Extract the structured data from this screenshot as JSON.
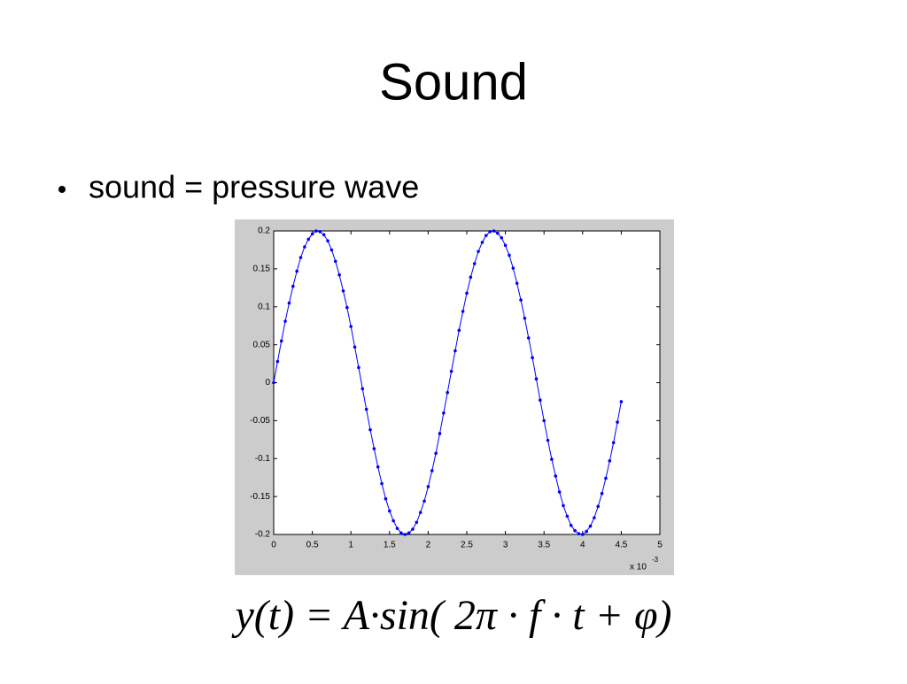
{
  "slide": {
    "title": "Sound",
    "bullet": "sound = pressure wave",
    "formula": "y(t) = A·sin( 2π · f · t + φ)"
  },
  "chart_data": {
    "type": "line",
    "x_multiplier": {
      "base": "x 10",
      "exponent": "-3"
    },
    "x": [
      0,
      0.05,
      0.1,
      0.15,
      0.2,
      0.25,
      0.3,
      0.35,
      0.4,
      0.45,
      0.5,
      0.55,
      0.6,
      0.65,
      0.7,
      0.75,
      0.8,
      0.85,
      0.9,
      0.95,
      1,
      1.05,
      1.1,
      1.15,
      1.2,
      1.25,
      1.3,
      1.35,
      1.4,
      1.45,
      1.5,
      1.55,
      1.6,
      1.65,
      1.7,
      1.75,
      1.8,
      1.85,
      1.9,
      1.95,
      2,
      2.05,
      2.1,
      2.15,
      2.2,
      2.25,
      2.3,
      2.35,
      2.4,
      2.45,
      2.5,
      2.55,
      2.6,
      2.65,
      2.7,
      2.75,
      2.8,
      2.85,
      2.9,
      2.95,
      3,
      3.05,
      3.1,
      3.15,
      3.2,
      3.25,
      3.3,
      3.35,
      3.4,
      3.45,
      3.5,
      3.55,
      3.6,
      3.65,
      3.7,
      3.75,
      3.8,
      3.85,
      3.9,
      3.95,
      4,
      4.05,
      4.1,
      4.15,
      4.2,
      4.25,
      4.3,
      4.35,
      4.4,
      4.45,
      4.5
    ],
    "series": [
      {
        "color": "#0000ff",
        "values": [
          0,
          0.028,
          0.055,
          0.081,
          0.105,
          0.127,
          0.147,
          0.165,
          0.179,
          0.189,
          0.196,
          0.2,
          0.199,
          0.195,
          0.187,
          0.175,
          0.16,
          0.142,
          0.121,
          0.099,
          0.074,
          0.047,
          0.02,
          -0.008,
          -0.035,
          -0.062,
          -0.087,
          -0.111,
          -0.133,
          -0.153,
          -0.169,
          -0.182,
          -0.192,
          -0.198,
          -0.2,
          -0.198,
          -0.193,
          -0.184,
          -0.171,
          -0.156,
          -0.137,
          -0.116,
          -0.093,
          -0.067,
          -0.04,
          -0.013,
          0.015,
          0.042,
          0.069,
          0.094,
          0.118,
          0.139,
          0.157,
          0.173,
          0.185,
          0.194,
          0.199,
          0.2,
          0.197,
          0.191,
          0.181,
          0.168,
          0.151,
          0.131,
          0.109,
          0.085,
          0.059,
          0.033,
          0.005,
          -0.023,
          -0.05,
          -0.076,
          -0.101,
          -0.123,
          -0.144,
          -0.162,
          -0.176,
          -0.188,
          -0.195,
          -0.199,
          -0.2,
          -0.196,
          -0.189,
          -0.178,
          -0.163,
          -0.146,
          -0.126,
          -0.103,
          -0.079,
          -0.052,
          -0.025
        ]
      }
    ],
    "xlim": [
      0,
      5
    ],
    "xticks": [
      0,
      0.5,
      1,
      1.5,
      2,
      2.5,
      3,
      3.5,
      4,
      4.5,
      5
    ],
    "ylim": [
      -0.2,
      0.2
    ],
    "yticks": [
      -0.2,
      -0.15,
      -0.1,
      -0.05,
      0,
      0.05,
      0.1,
      0.15,
      0.2
    ]
  }
}
